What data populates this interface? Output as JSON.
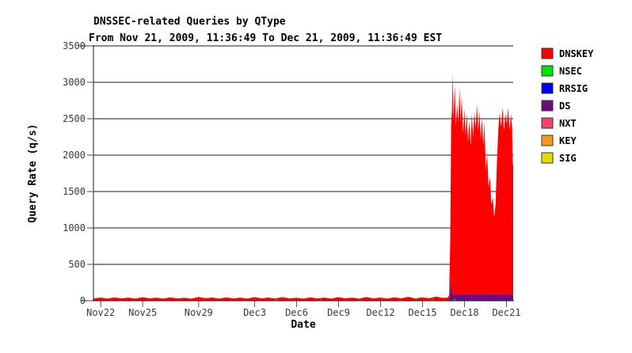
{
  "page": {
    "background": "#ffffff"
  },
  "chart_data": {
    "type": "area",
    "stacked": true,
    "title": "DNSSEC-related Queries by QType",
    "subtitle": "From Nov 21, 2009, 11:36:49 To Dec 21, 2009, 11:36:49 EST",
    "xlabel": "Date",
    "ylabel": "Query Rate (q/s)",
    "ylim": [
      0,
      3500
    ],
    "yticks": [
      0,
      500,
      1000,
      1500,
      2000,
      2500,
      3000,
      3500
    ],
    "x_range_days": [
      0,
      30
    ],
    "grid": true,
    "legend_position": "right",
    "xticks": [
      {
        "label": "Nov22",
        "day": 0.52
      },
      {
        "label": "Nov25",
        "day": 3.52
      },
      {
        "label": "Nov29",
        "day": 7.52
      },
      {
        "label": "Dec3",
        "day": 11.52
      },
      {
        "label": "Dec6",
        "day": 14.52
      },
      {
        "label": "Dec9",
        "day": 17.52
      },
      {
        "label": "Dec12",
        "day": 20.52
      },
      {
        "label": "Dec15",
        "day": 23.52
      },
      {
        "label": "Dec18",
        "day": 26.52
      },
      {
        "label": "Dec21",
        "day": 29.52
      }
    ],
    "legend": [
      {
        "name": "DNSKEY",
        "color": "#ff0000"
      },
      {
        "name": "NSEC",
        "color": "#00e100"
      },
      {
        "name": "RRSIG",
        "color": "#0000f0"
      },
      {
        "name": "DS",
        "color": "#6e0c7f"
      },
      {
        "name": "NXT",
        "color": "#f0436e"
      },
      {
        "name": "KEY",
        "color": "#f89821"
      },
      {
        "name": "SIG",
        "color": "#e0dd00"
      }
    ],
    "points_format": "[day_offset_from_Nov21_1136, DS_qps, DNSKEY_qps] stacked; other qtypes ~0",
    "points": [
      [
        0,
        8,
        24
      ],
      [
        0.5,
        11,
        32
      ],
      [
        1,
        8,
        22
      ],
      [
        1.5,
        11,
        36
      ],
      [
        2,
        8,
        25
      ],
      [
        2.5,
        11,
        33
      ],
      [
        3,
        8,
        21
      ],
      [
        3.5,
        11,
        38
      ],
      [
        4,
        8,
        26
      ],
      [
        4.5,
        11,
        31
      ],
      [
        5,
        8,
        22
      ],
      [
        5.5,
        11,
        35
      ],
      [
        6,
        8,
        24
      ],
      [
        6.5,
        11,
        30
      ],
      [
        7,
        8,
        20
      ],
      [
        7.5,
        11,
        42
      ],
      [
        8,
        8,
        27
      ],
      [
        8.5,
        11,
        33
      ],
      [
        9,
        8,
        22
      ],
      [
        9.5,
        11,
        36
      ],
      [
        10,
        8,
        25
      ],
      [
        10.5,
        11,
        31
      ],
      [
        11,
        8,
        21
      ],
      [
        11.5,
        11,
        39
      ],
      [
        12,
        8,
        26
      ],
      [
        12.5,
        11,
        32
      ],
      [
        13,
        8,
        23
      ],
      [
        13.5,
        11,
        41
      ],
      [
        14,
        8,
        25
      ],
      [
        14.5,
        11,
        30
      ],
      [
        15,
        8,
        21
      ],
      [
        15.5,
        11,
        36
      ],
      [
        16,
        8,
        24
      ],
      [
        16.5,
        11,
        33
      ],
      [
        17,
        8,
        22
      ],
      [
        17.5,
        11,
        38
      ],
      [
        18,
        8,
        26
      ],
      [
        18.5,
        11,
        31
      ],
      [
        19,
        8,
        21
      ],
      [
        19.5,
        11,
        40
      ],
      [
        20,
        8,
        25
      ],
      [
        20.5,
        11,
        33
      ],
      [
        21,
        8,
        22
      ],
      [
        21.5,
        11,
        37
      ],
      [
        22,
        8,
        26
      ],
      [
        22.5,
        11,
        43
      ],
      [
        23,
        8,
        24
      ],
      [
        23.5,
        11,
        36
      ],
      [
        24,
        8,
        27
      ],
      [
        24.5,
        11,
        45
      ],
      [
        25,
        9,
        30
      ],
      [
        25.3,
        10,
        32
      ],
      [
        25.42,
        14,
        60
      ],
      [
        25.5,
        120,
        700
      ],
      [
        25.56,
        380,
        2030
      ],
      [
        25.62,
        150,
        2450
      ],
      [
        25.68,
        90,
        3040
      ],
      [
        25.74,
        80,
        2420
      ],
      [
        25.82,
        85,
        2880
      ],
      [
        25.9,
        90,
        2310
      ],
      [
        26,
        85,
        2620
      ],
      [
        26.08,
        80,
        2370
      ],
      [
        26.16,
        90,
        2830
      ],
      [
        26.24,
        85,
        2350
      ],
      [
        26.32,
        80,
        2730
      ],
      [
        26.42,
        90,
        2210
      ],
      [
        26.5,
        85,
        2550
      ],
      [
        26.6,
        80,
        2180
      ],
      [
        26.68,
        90,
        2480
      ],
      [
        26.78,
        85,
        2090
      ],
      [
        26.86,
        80,
        2400
      ],
      [
        26.96,
        90,
        2030
      ],
      [
        27.04,
        85,
        2480
      ],
      [
        27.14,
        80,
        2150
      ],
      [
        27.22,
        90,
        2500
      ],
      [
        27.32,
        85,
        2290
      ],
      [
        27.4,
        80,
        2620
      ],
      [
        27.5,
        90,
        2230
      ],
      [
        27.58,
        85,
        2520
      ],
      [
        27.68,
        80,
        2140
      ],
      [
        27.76,
        90,
        2430
      ],
      [
        27.86,
        85,
        2060
      ],
      [
        27.94,
        80,
        2380
      ],
      [
        28.04,
        90,
        1700
      ],
      [
        28.14,
        85,
        1930
      ],
      [
        28.24,
        80,
        1480
      ],
      [
        28.34,
        90,
        1610
      ],
      [
        28.44,
        85,
        1240
      ],
      [
        28.54,
        80,
        1340
      ],
      [
        28.64,
        90,
        1060
      ],
      [
        28.74,
        85,
        1230
      ],
      [
        28.84,
        80,
        1840
      ],
      [
        28.94,
        90,
        2280
      ],
      [
        29.04,
        85,
        2500
      ],
      [
        29.14,
        80,
        2310
      ],
      [
        29.24,
        90,
        2560
      ],
      [
        29.34,
        85,
        2260
      ],
      [
        29.44,
        80,
        2490
      ],
      [
        29.54,
        90,
        2330
      ],
      [
        29.64,
        85,
        2570
      ],
      [
        29.74,
        80,
        2250
      ],
      [
        29.84,
        90,
        2480
      ],
      [
        29.92,
        80,
        2300
      ],
      [
        29.97,
        75,
        1800
      ],
      [
        30,
        70,
        1790
      ]
    ],
    "nsec_blips": [
      {
        "day": 13.1,
        "value": 18
      },
      {
        "day": 16.3,
        "value": 18
      },
      {
        "day": 19.0,
        "value": 18
      },
      {
        "day": 23.1,
        "value": 18
      },
      {
        "day": 24.2,
        "value": 20
      },
      {
        "day": 25.81,
        "value": 22
      }
    ]
  }
}
